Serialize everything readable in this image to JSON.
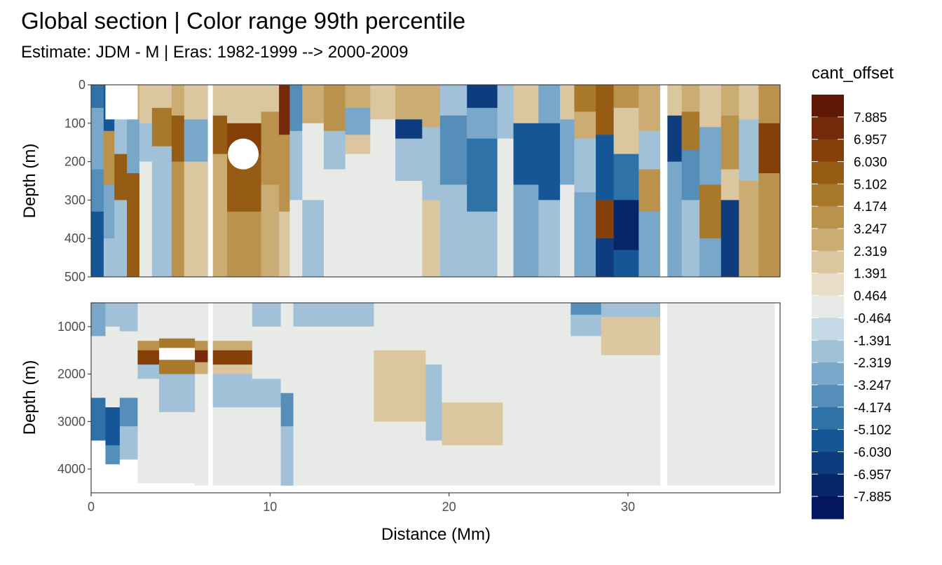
{
  "title": "Global section | Color range 99th percentile",
  "subtitle": "Estimate: JDM - M | Eras: 1982-1999 --> 2000-2009",
  "chart_data": {
    "type": "heatmap",
    "xlabel": "Distance (Mm)",
    "ylabel": "Depth (m)",
    "xlim": [
      0,
      38.5
    ],
    "x_ticks": [
      "0",
      "10",
      "20",
      "30"
    ],
    "x_tick_values": [
      0,
      10,
      20,
      30
    ],
    "legend_position": "right",
    "grid": true,
    "panels": [
      {
        "name": "upper",
        "ylim": [
          0,
          500
        ],
        "y_ticks": [
          "0",
          "100",
          "200",
          "300",
          "400",
          "500"
        ],
        "y_tick_values": [
          0,
          100,
          200,
          300,
          400,
          500
        ]
      },
      {
        "name": "lower",
        "ylim": [
          500,
          4500
        ],
        "y_ticks": [
          "1000",
          "2000",
          "3000",
          "4000"
        ],
        "y_tick_values": [
          1000,
          2000,
          3000,
          4000
        ]
      }
    ],
    "legend": {
      "title": "cant_offset",
      "labels": [
        "7.885",
        "6.957",
        "6.030",
        "5.102",
        "4.174",
        "3.247",
        "2.319",
        "1.391",
        "0.464",
        "-0.464",
        "-1.391",
        "-2.319",
        "-3.247",
        "-4.174",
        "-5.102",
        "-6.030",
        "-6.957",
        "-7.885"
      ],
      "colors": [
        "#5e1703",
        "#73290a",
        "#854009",
        "#965c14",
        "#a8782b",
        "#ba924b",
        "#cbad74",
        "#dbc79f",
        "#e8ddc8",
        "#e8eae7",
        "#c5dae6",
        "#a0c1d8",
        "#79a7c9",
        "#548eb9",
        "#2e72a8",
        "#155796",
        "#0d3d7f",
        "#06266a",
        "#041660"
      ]
    }
  }
}
